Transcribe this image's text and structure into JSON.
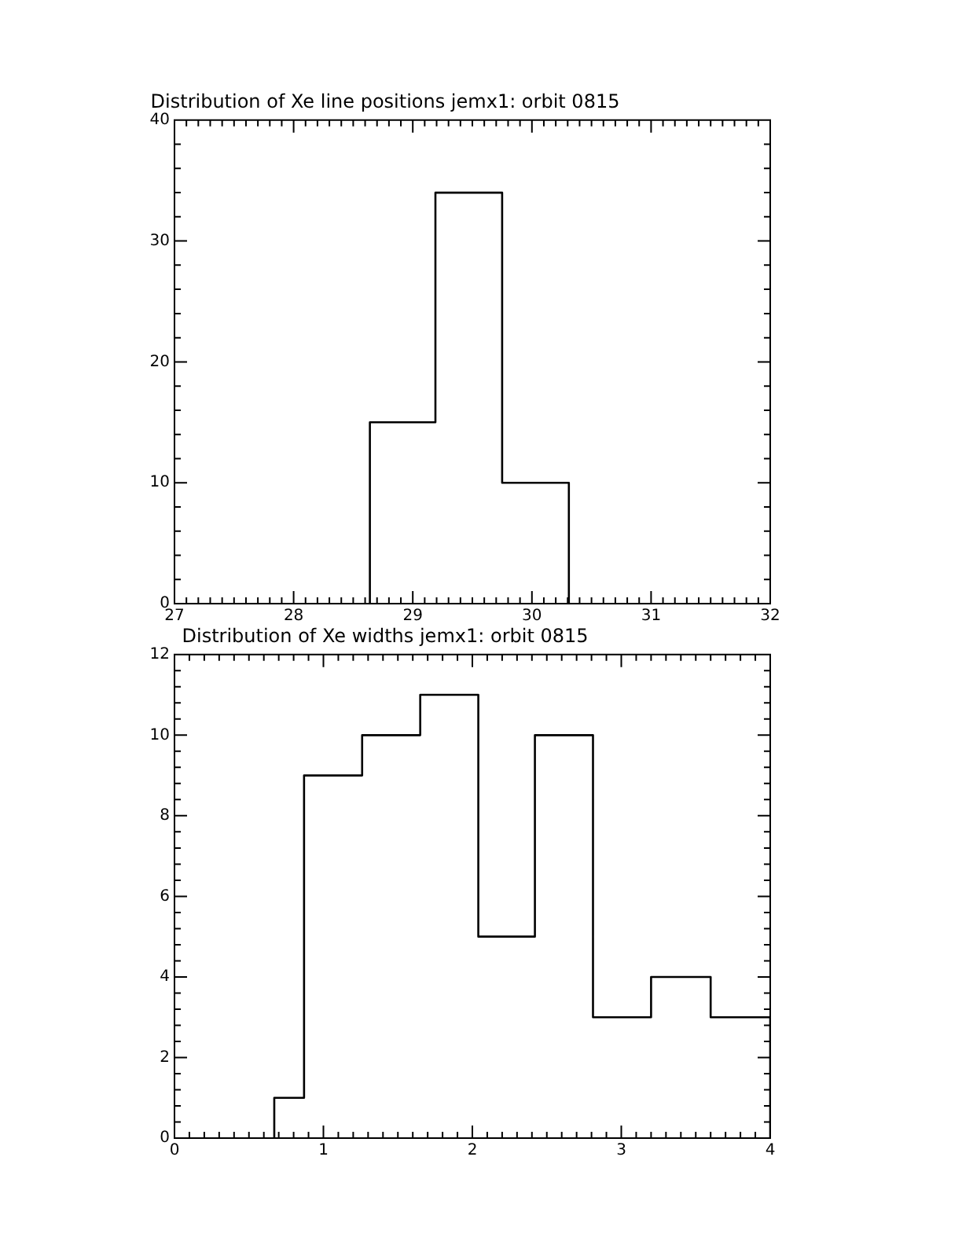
{
  "chart_data": [
    {
      "type": "histogram",
      "title": "Distribution of Xe line positions jemx1: orbit 0815",
      "bins": [
        28.64,
        29.19,
        29.75,
        30.31
      ],
      "values": [
        15,
        34,
        10
      ],
      "color": "#000000",
      "xlim": [
        27,
        32
      ],
      "xticks": [
        27,
        28,
        29,
        30,
        31,
        32
      ],
      "ylim": [
        0,
        40
      ],
      "yticks": [
        0,
        10,
        20,
        30,
        40
      ],
      "grid": false
    },
    {
      "type": "histogram",
      "title": "Distribution of Xe widths jemx1: orbit 0815",
      "bins": [
        0.67,
        0.87,
        1.26,
        1.65,
        2.04,
        2.42,
        2.81,
        3.2,
        3.6,
        4.0
      ],
      "values": [
        1,
        9,
        10,
        11,
        5,
        10,
        3,
        4,
        3
      ],
      "color": "#000000",
      "xlim": [
        0,
        4
      ],
      "xticks": [
        0,
        1,
        2,
        3,
        4
      ],
      "ylim": [
        0,
        12
      ],
      "yticks": [
        0,
        2,
        4,
        6,
        8,
        10,
        12
      ],
      "grid": false
    }
  ]
}
